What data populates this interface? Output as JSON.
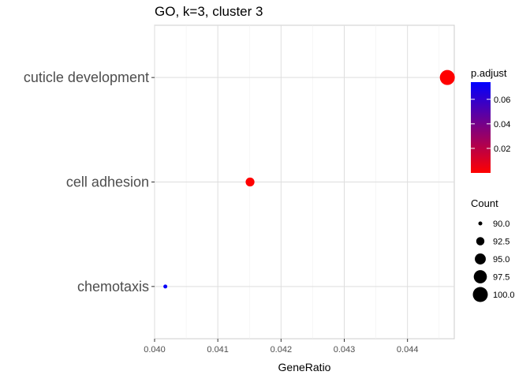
{
  "chart_data": {
    "type": "scatter",
    "title": "GO, k=3, cluster 3",
    "xlabel": "GeneRatio",
    "ylabel": "",
    "categories": [
      "cuticle development",
      "cell adhesion",
      "chemotaxis"
    ],
    "xlim": [
      0.04,
      0.04474
    ],
    "x_ticks": [
      0.04,
      0.041,
      0.042,
      0.043,
      0.044
    ],
    "x_tick_labels": [
      "0.040",
      "0.041",
      "0.042",
      "0.043",
      "0.044"
    ],
    "grid": true,
    "points": [
      {
        "category": "cuticle development",
        "x": 0.04463,
        "count": 100,
        "p_adjust": 0.0
      },
      {
        "category": "cell adhesion",
        "x": 0.04151,
        "count": 93,
        "p_adjust": 0.0
      },
      {
        "category": "chemotaxis",
        "x": 0.04017,
        "count": 89,
        "p_adjust": 0.072
      }
    ],
    "color_legend": {
      "title": "p.adjust",
      "range": [
        0.0,
        0.074
      ],
      "ticks": [
        0.02,
        0.04,
        0.06
      ],
      "tick_labels": [
        "0.02",
        "0.04",
        "0.06"
      ],
      "low_color": "#ff0000",
      "high_color": "#0000ff"
    },
    "size_legend": {
      "title": "Count",
      "values": [
        90.0,
        92.5,
        95.0,
        97.5,
        100.0
      ],
      "labels": [
        "90.0",
        "92.5",
        "95.0",
        "97.5",
        "100.0"
      ]
    },
    "legend_position": "right"
  }
}
